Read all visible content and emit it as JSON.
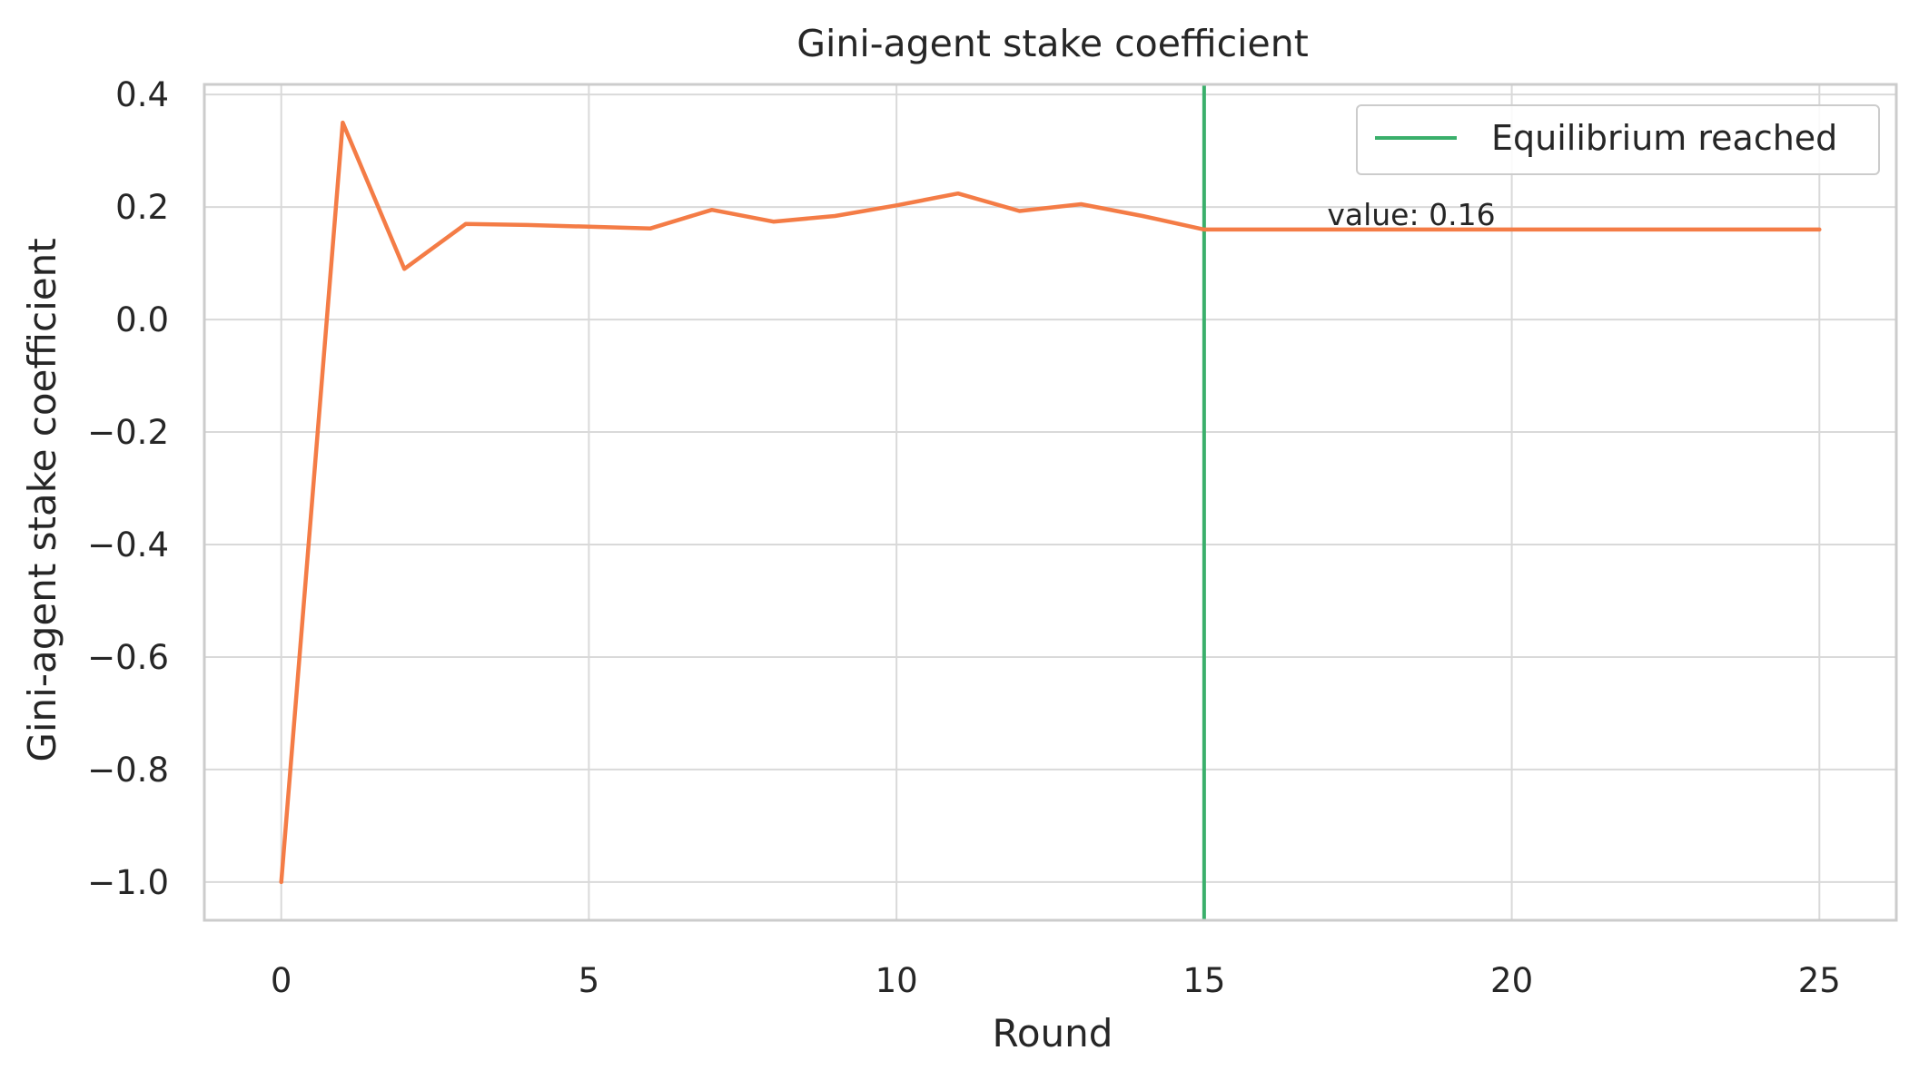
{
  "chart_data": {
    "type": "line",
    "title": "Gini-agent stake coefficient",
    "xlabel": "Round",
    "ylabel": "Gini-agent stake coefficient",
    "xlim": [
      -1.25,
      26.25
    ],
    "ylim": [
      -1.068,
      0.418
    ],
    "x_ticks": [
      0,
      5,
      10,
      15,
      20,
      25
    ],
    "x_tick_labels": [
      "0",
      "5",
      "10",
      "15",
      "20",
      "25"
    ],
    "y_ticks": [
      0.4,
      0.2,
      0.0,
      -0.2,
      -0.4,
      -0.6,
      -0.8,
      -1.0
    ],
    "y_tick_labels": [
      "0.4",
      "0.2",
      "0.0",
      "−0.2",
      "−0.4",
      "−0.6",
      "−0.8",
      "−1.0"
    ],
    "grid": true,
    "legend_position": "top-right",
    "series": [
      {
        "color": "#f47c46",
        "x": [
          0,
          1,
          2,
          3,
          4,
          5,
          6,
          7,
          8,
          9,
          10,
          11,
          12,
          13,
          14,
          15,
          16,
          17,
          18,
          19,
          20,
          21,
          22,
          23,
          24,
          25
        ],
        "values": [
          -1.0,
          0.35,
          0.09,
          0.17,
          0.168,
          0.165,
          0.162,
          0.195,
          0.174,
          0.184,
          0.203,
          0.224,
          0.193,
          0.205,
          0.184,
          0.16,
          0.16,
          0.16,
          0.16,
          0.16,
          0.16,
          0.16,
          0.16,
          0.16,
          0.16,
          0.16
        ]
      }
    ],
    "vertical_line": {
      "x": 15,
      "label": "Equilibrium reached",
      "color": "#3aaf6b"
    },
    "annotation": {
      "text": "value: 0.16",
      "x": 17.0,
      "y": 0.16
    }
  }
}
